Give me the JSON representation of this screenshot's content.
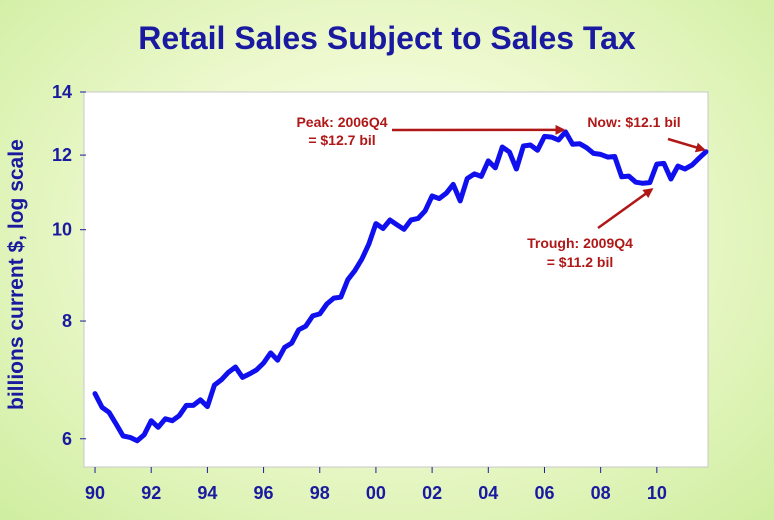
{
  "chart_data": {
    "type": "line",
    "title": "Retail Sales Subject to Sales Tax",
    "ylabel": "billions current $, log scale",
    "xlabel": "",
    "y_scale": "log",
    "ylim": [
      5.6,
      14
    ],
    "xlim": [
      1989.75,
      2011.75
    ],
    "y_ticks": [
      6,
      8,
      10,
      12,
      14
    ],
    "x_ticks": [
      {
        "value": 1990,
        "label": "90"
      },
      {
        "value": 1992,
        "label": "92"
      },
      {
        "value": 1994,
        "label": "94"
      },
      {
        "value": 1996,
        "label": "96"
      },
      {
        "value": 1998,
        "label": "98"
      },
      {
        "value": 2000,
        "label": "00"
      },
      {
        "value": 2002,
        "label": "02"
      },
      {
        "value": 2004,
        "label": "04"
      },
      {
        "value": 2006,
        "label": "06"
      },
      {
        "value": 2008,
        "label": "08"
      },
      {
        "value": 2010,
        "label": "10"
      }
    ],
    "line_color": "#1010ee",
    "series": [
      {
        "name": "",
        "x": [
          1990.0,
          1990.25,
          1990.5,
          1990.75,
          1991.0,
          1991.25,
          1991.5,
          1991.75,
          1992.0,
          1992.25,
          1992.5,
          1992.75,
          1993.0,
          1993.25,
          1993.5,
          1993.75,
          1994.0,
          1994.25,
          1994.5,
          1994.75,
          1995.0,
          1995.25,
          1995.5,
          1995.75,
          1996.0,
          1996.25,
          1996.5,
          1996.75,
          1997.0,
          1997.25,
          1997.5,
          1997.75,
          1998.0,
          1998.25,
          1998.5,
          1998.75,
          1999.0,
          1999.25,
          1999.5,
          1999.75,
          2000.0,
          2000.25,
          2000.5,
          2000.75,
          2001.0,
          2001.25,
          2001.5,
          2001.75,
          2002.0,
          2002.25,
          2002.5,
          2002.75,
          2003.0,
          2003.25,
          2003.5,
          2003.75,
          2004.0,
          2004.25,
          2004.5,
          2004.75,
          2005.0,
          2005.25,
          2005.5,
          2005.75,
          2006.0,
          2006.25,
          2006.5,
          2006.75,
          2007.0,
          2007.25,
          2007.5,
          2007.75,
          2008.0,
          2008.25,
          2008.5,
          2008.75,
          2009.0,
          2009.25,
          2009.5,
          2009.75,
          2010.0,
          2010.25,
          2010.5,
          2010.75,
          2011.0,
          2011.25,
          2011.5,
          2011.75
        ],
        "y": [
          6.7,
          6.48,
          6.4,
          6.22,
          6.04,
          6.02,
          5.97,
          6.06,
          6.27,
          6.17,
          6.3,
          6.27,
          6.35,
          6.51,
          6.51,
          6.6,
          6.49,
          6.84,
          6.93,
          7.06,
          7.15,
          6.97,
          7.03,
          7.1,
          7.22,
          7.4,
          7.27,
          7.5,
          7.58,
          7.83,
          7.9,
          8.1,
          8.14,
          8.34,
          8.46,
          8.48,
          8.85,
          9.05,
          9.31,
          9.66,
          10.15,
          10.03,
          10.24,
          10.12,
          10.01,
          10.24,
          10.28,
          10.47,
          10.86,
          10.79,
          10.93,
          11.17,
          10.73,
          11.33,
          11.46,
          11.39,
          11.83,
          11.63,
          12.24,
          12.09,
          11.6,
          12.27,
          12.3,
          12.14,
          12.56,
          12.54,
          12.45,
          12.7,
          12.32,
          12.34,
          12.22,
          12.05,
          12.02,
          11.94,
          11.96,
          11.38,
          11.4,
          11.23,
          11.2,
          11.22,
          11.74,
          11.76,
          11.32,
          11.68,
          11.6,
          11.71,
          11.91,
          12.1
        ]
      }
    ],
    "annotations": [
      {
        "lines": [
          "Peak: 2006Q4",
          "= $12.7 bil"
        ],
        "x": 2006.75,
        "y": 12.7
      },
      {
        "lines": [
          "Now: $12.1 bil"
        ],
        "x": 2011.75,
        "y": 12.1
      },
      {
        "lines": [
          "Trough: 2009Q4",
          "= $11.2 bil"
        ],
        "x": 2009.75,
        "y": 11.2
      }
    ]
  }
}
